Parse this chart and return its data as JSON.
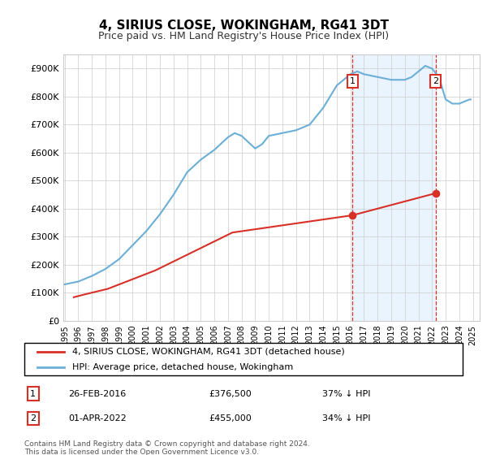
{
  "title": "4, SIRIUS CLOSE, WOKINGHAM, RG41 3DT",
  "subtitle": "Price paid vs. HM Land Registry's House Price Index (HPI)",
  "hpi_color": "#6baed6",
  "price_color": "#d73027",
  "annotation_bg": "#ddeeff",
  "grid_color": "#cccccc",
  "ylim": [
    0,
    950000
  ],
  "yticks": [
    0,
    100000,
    200000,
    300000,
    400000,
    500000,
    600000,
    700000,
    800000,
    900000
  ],
  "transaction1": {
    "label": "1",
    "date": "26-FEB-2016",
    "price": 376500,
    "x": 2016.15,
    "pct": "37%",
    "dir": "↓"
  },
  "transaction2": {
    "label": "2",
    "date": "01-APR-2022",
    "price": 455000,
    "x": 2022.25,
    "pct": "34%",
    "dir": "↓"
  },
  "legend_line1": "4, SIRIUS CLOSE, WOKINGHAM, RG41 3DT (detached house)",
  "legend_line2": "HPI: Average price, detached house, Wokingham",
  "footer": "Contains HM Land Registry data © Crown copyright and database right 2024.\nThis data is licensed under the Open Government Licence v3.0.",
  "price_data_x": [
    1995.67,
    1996.42,
    1998.17,
    2001.67,
    2007.33,
    2016.15,
    2022.25
  ],
  "price_data_y": [
    84000,
    93500,
    114000,
    179950,
    315000,
    376500,
    455000
  ]
}
